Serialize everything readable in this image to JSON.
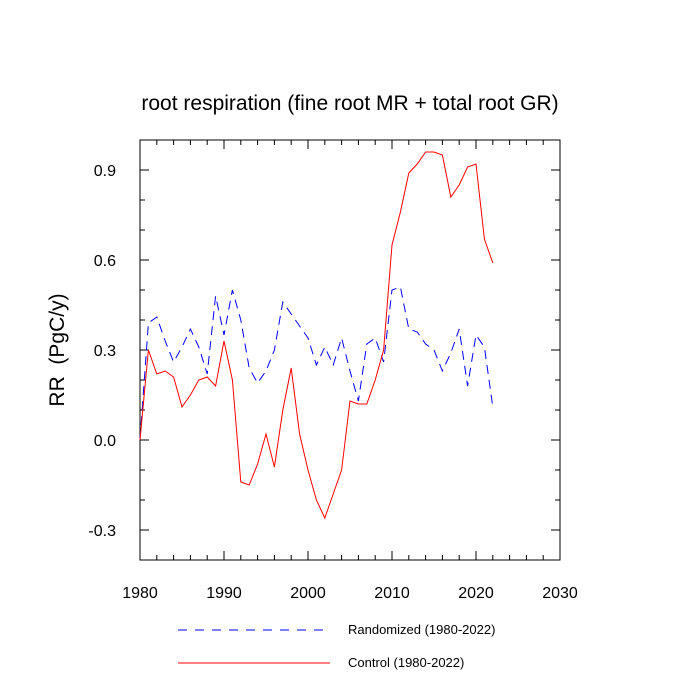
{
  "chart_data": {
    "type": "line",
    "title": "root respiration (fine root MR + total root GR)",
    "xlabel": "",
    "ylabel": "RR  (PgC/y)",
    "xlim": [
      1980,
      2030
    ],
    "ylim": [
      -0.4,
      1.0
    ],
    "x_ticks": [
      1980,
      1990,
      2000,
      2010,
      2020,
      2030
    ],
    "y_ticks": [
      -0.3,
      0.0,
      0.3,
      0.6,
      0.9
    ],
    "y_tick_labels": [
      "-0.3",
      "0.0",
      "0.3",
      "0.6",
      "0.9"
    ],
    "grid": false,
    "series": [
      {
        "name": "Randomized (1980-2022)",
        "color": "#0000ff",
        "style": "dashed",
        "x": [
          1980,
          1981,
          1982,
          1983,
          1984,
          1985,
          1986,
          1987,
          1988,
          1989,
          1990,
          1991,
          1992,
          1993,
          1994,
          1995,
          1996,
          1997,
          1998,
          1999,
          2000,
          2001,
          2002,
          2003,
          2004,
          2005,
          2006,
          2007,
          2008,
          2009,
          2010,
          2011,
          2012,
          2013,
          2014,
          2015,
          2016,
          2017,
          2018,
          2019,
          2020,
          2021,
          2022
        ],
        "values": [
          0.0,
          0.39,
          0.41,
          0.33,
          0.26,
          0.31,
          0.37,
          0.31,
          0.22,
          0.48,
          0.35,
          0.5,
          0.4,
          0.24,
          0.19,
          0.23,
          0.3,
          0.46,
          0.42,
          0.38,
          0.34,
          0.25,
          0.31,
          0.25,
          0.34,
          0.23,
          0.13,
          0.32,
          0.34,
          0.26,
          0.5,
          0.51,
          0.37,
          0.36,
          0.32,
          0.3,
          0.23,
          0.29,
          0.37,
          0.18,
          0.35,
          0.31,
          0.11
        ]
      },
      {
        "name": "Control (1980-2022)",
        "color": "#ff0000",
        "style": "solid",
        "x": [
          1980,
          1981,
          1982,
          1983,
          1984,
          1985,
          1986,
          1987,
          1988,
          1989,
          1990,
          1991,
          1992,
          1993,
          1994,
          1995,
          1996,
          1997,
          1998,
          1999,
          2000,
          2001,
          2002,
          2003,
          2004,
          2005,
          2006,
          2007,
          2008,
          2009,
          2010,
          2011,
          2012,
          2013,
          2014,
          2015,
          2016,
          2017,
          2018,
          2019,
          2020,
          2021,
          2022
        ],
        "values": [
          0.0,
          0.3,
          0.22,
          0.23,
          0.21,
          0.11,
          0.15,
          0.2,
          0.21,
          0.18,
          0.33,
          0.2,
          -0.14,
          -0.15,
          -0.08,
          0.02,
          -0.09,
          0.1,
          0.24,
          0.02,
          -0.1,
          -0.2,
          -0.26,
          -0.18,
          -0.1,
          0.13,
          0.12,
          0.12,
          0.2,
          0.3,
          0.65,
          0.76,
          0.89,
          0.92,
          0.96,
          0.96,
          0.95,
          0.81,
          0.85,
          0.91,
          0.92,
          0.67,
          0.59
        ]
      }
    ],
    "legend_position": "bottom"
  }
}
